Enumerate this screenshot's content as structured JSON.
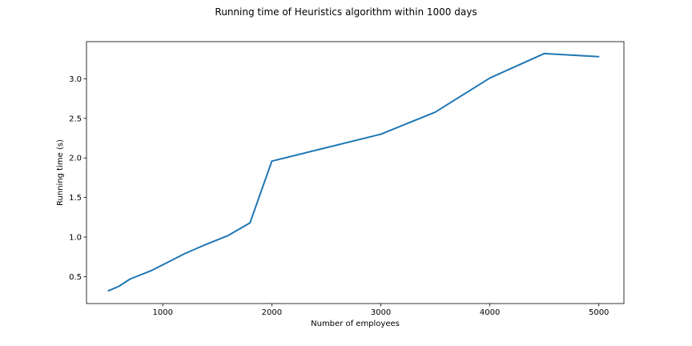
{
  "chart_data": {
    "type": "line",
    "title": "Running time of Heuristics algorithm within 1000 days",
    "xlabel": "Number of employees",
    "ylabel": "Running time (s)",
    "xlim": [
      300,
      5230
    ],
    "ylim": [
      0.16,
      3.47
    ],
    "xticks": [
      1000,
      2000,
      3000,
      4000,
      5000
    ],
    "yticks": [
      0.5,
      1.0,
      1.5,
      2.0,
      2.5,
      3.0
    ],
    "xtick_labels": [
      "1000",
      "2000",
      "3000",
      "4000",
      "5000"
    ],
    "ytick_labels": [
      "0.5",
      "1.0",
      "1.5",
      "2.0",
      "2.5",
      "3.0"
    ],
    "grid": false,
    "legend": "none",
    "series": [
      {
        "color": "#1f77b4",
        "x": [
          500,
          600,
          700,
          900,
          1000,
          1200,
          1400,
          1600,
          1800,
          2000,
          2500,
          3000,
          3500,
          4000,
          4500,
          5000
        ],
        "y": [
          0.32,
          0.38,
          0.47,
          0.58,
          0.65,
          0.79,
          0.91,
          1.02,
          1.18,
          1.96,
          2.13,
          2.3,
          2.58,
          3.01,
          3.32,
          3.28
        ]
      }
    ]
  }
}
